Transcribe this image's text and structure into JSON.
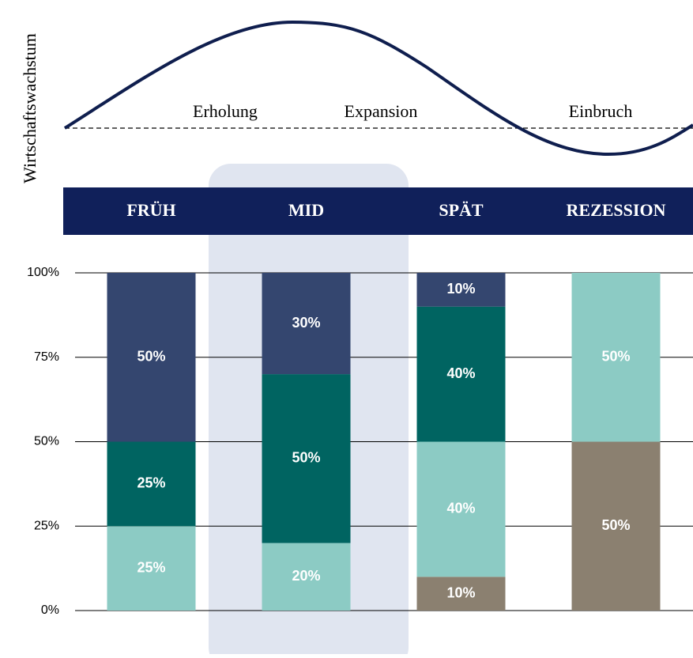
{
  "chart_data": {
    "type": "stacked_bar",
    "annotations": {
      "axis_label": "Wirtschaftswachstum",
      "phases": [
        "Erholung",
        "Expansion",
        "Einbruch"
      ]
    },
    "categories": [
      "FRÜH",
      "MID",
      "SPÄT",
      "REZESSION"
    ],
    "series": [
      {
        "color": "#8b8070",
        "values": [
          null,
          null,
          10,
          50
        ],
        "value_labels": [
          null,
          null,
          "10%",
          "50%"
        ]
      },
      {
        "color": "#8ccbc4",
        "values": [
          25,
          20,
          40,
          50
        ],
        "value_labels": [
          "25%",
          "20%",
          "40%",
          "50%"
        ]
      },
      {
        "color": "#006461",
        "values": [
          25,
          50,
          40,
          null
        ],
        "value_labels": [
          "25%",
          "50%",
          "40%",
          null
        ]
      },
      {
        "color": "#34466f",
        "values": [
          50,
          30,
          10,
          null
        ],
        "value_labels": [
          "50%",
          "30%",
          "10%",
          null
        ]
      }
    ],
    "ylim": [
      0,
      100
    ],
    "yticks": [
      {
        "value": 0,
        "label": "0%"
      },
      {
        "value": 25,
        "label": "25%"
      },
      {
        "value": 50,
        "label": "50%"
      },
      {
        "value": 75,
        "label": "75%"
      },
      {
        "value": 100,
        "label": "100%"
      }
    ],
    "grid": true
  }
}
